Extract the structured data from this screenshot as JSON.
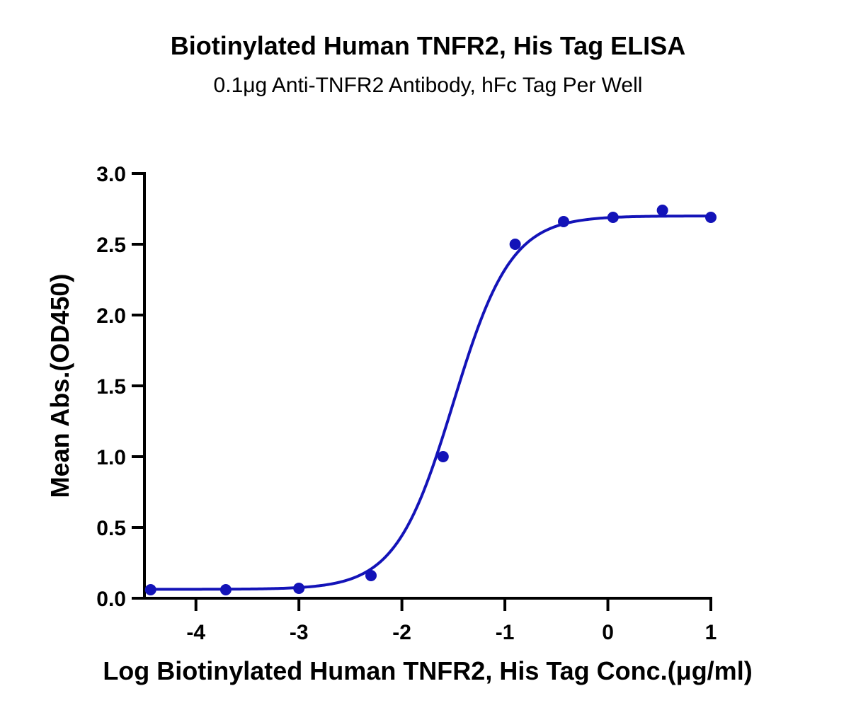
{
  "chart_data": {
    "type": "scatter",
    "title": "Biotinylated Human TNFR2, His Tag ELISA",
    "subtitle": "0.1μg Anti-TNFR2 Antibody, hFc Tag Per Well",
    "xlabel": "Log Biotinylated Human TNFR2, His Tag Conc.(μg/ml)",
    "ylabel": "Mean Abs.(OD450)",
    "xlim": [
      -4.5,
      1
    ],
    "ylim": [
      0,
      3
    ],
    "x_ticks": [
      "-4",
      "-3",
      "-2",
      "-1",
      "0",
      "1"
    ],
    "y_ticks": [
      "0.0",
      "0.5",
      "1.0",
      "1.5",
      "2.0",
      "2.5",
      "3.0"
    ],
    "grid": false,
    "legend": "none",
    "color": "#1313b8",
    "points": [
      {
        "x": -4.44,
        "y": 0.06
      },
      {
        "x": -3.71,
        "y": 0.06
      },
      {
        "x": -3.0,
        "y": 0.07
      },
      {
        "x": -2.3,
        "y": 0.16
      },
      {
        "x": -1.6,
        "y": 1.0
      },
      {
        "x": -0.9,
        "y": 2.5
      },
      {
        "x": -0.43,
        "y": 2.66
      },
      {
        "x": 0.05,
        "y": 2.69
      },
      {
        "x": 0.53,
        "y": 2.74
      },
      {
        "x": 1.0,
        "y": 2.69
      }
    ],
    "fit_curve": {
      "model": "4PL",
      "bottom": 0.063,
      "top": 2.7,
      "logEC50": -1.5,
      "hill_slope": 1.55
    }
  }
}
